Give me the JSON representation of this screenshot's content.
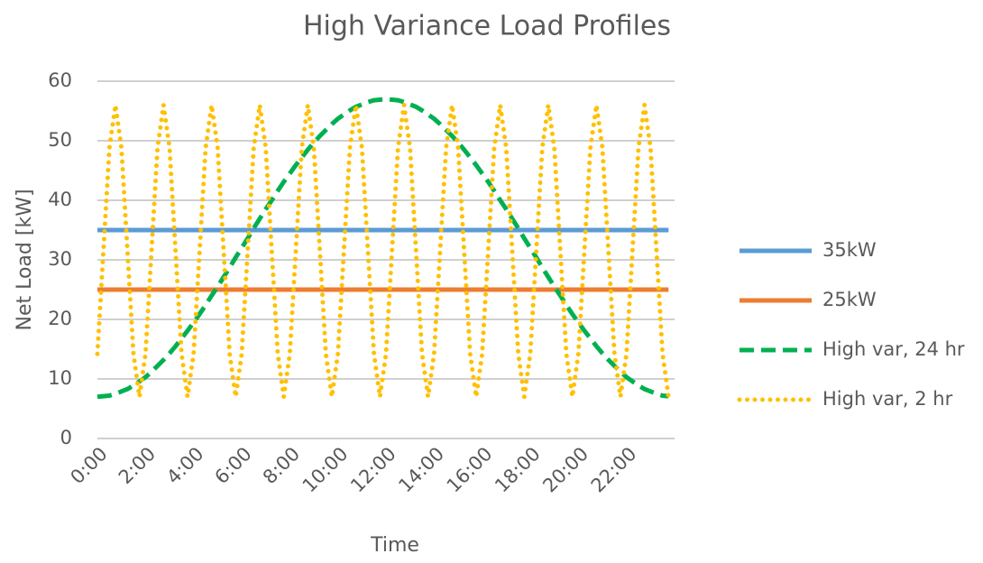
{
  "chart_data": {
    "type": "line",
    "title": "High Variance Load Profiles",
    "x_label": "Time",
    "y_label": "Net Load [kW]",
    "categories": [
      "0:00",
      null,
      null,
      null,
      null,
      null,
      null,
      null,
      "2:00",
      null,
      null,
      null,
      null,
      null,
      null,
      null,
      "4:00",
      null,
      null,
      null,
      null,
      null,
      null,
      null,
      "6:00",
      null,
      null,
      null,
      null,
      null,
      null,
      null,
      "8:00",
      null,
      null,
      null,
      null,
      null,
      null,
      null,
      "10:00",
      null,
      null,
      null,
      null,
      null,
      null,
      null,
      "12:00",
      null,
      null,
      null,
      null,
      null,
      null,
      null,
      "14:00",
      null,
      null,
      null,
      null,
      null,
      null,
      null,
      "16:00",
      null,
      null,
      null,
      null,
      null,
      null,
      null,
      "18:00",
      null,
      null,
      null,
      null,
      null,
      null,
      null,
      "20:00",
      null,
      null,
      null,
      null,
      null,
      null,
      null,
      "22:00",
      null,
      null,
      null,
      null,
      null,
      null,
      null
    ],
    "ylim": [
      0,
      60
    ],
    "yticks": [
      0,
      10,
      20,
      30,
      40,
      50,
      60
    ],
    "grid": true,
    "legend": "right",
    "series": [
      {
        "name": "35kW",
        "color": "#5b9bd5",
        "style": "solid",
        "values": [
          35,
          35,
          35,
          35,
          35,
          35,
          35,
          35,
          35,
          35,
          35,
          35,
          35,
          35,
          35,
          35,
          35,
          35,
          35,
          35,
          35,
          35,
          35,
          35,
          35,
          35,
          35,
          35,
          35,
          35,
          35,
          35,
          35,
          35,
          35,
          35,
          35,
          35,
          35,
          35,
          35,
          35,
          35,
          35,
          35,
          35,
          35,
          35,
          35,
          35,
          35,
          35,
          35,
          35,
          35,
          35,
          35,
          35,
          35,
          35,
          35,
          35,
          35,
          35,
          35,
          35,
          35,
          35,
          35,
          35,
          35,
          35,
          35,
          35,
          35,
          35,
          35,
          35,
          35,
          35,
          35,
          35,
          35,
          35,
          35,
          35,
          35,
          35,
          35,
          35,
          35,
          35,
          35,
          35,
          35,
          35
        ]
      },
      {
        "name": "25kW",
        "color": "#ed7d31",
        "style": "solid",
        "values": [
          25,
          25,
          25,
          25,
          25,
          25,
          25,
          25,
          25,
          25,
          25,
          25,
          25,
          25,
          25,
          25,
          25,
          25,
          25,
          25,
          25,
          25,
          25,
          25,
          25,
          25,
          25,
          25,
          25,
          25,
          25,
          25,
          25,
          25,
          25,
          25,
          25,
          25,
          25,
          25,
          25,
          25,
          25,
          25,
          25,
          25,
          25,
          25,
          25,
          25,
          25,
          25,
          25,
          25,
          25,
          25,
          25,
          25,
          25,
          25,
          25,
          25,
          25,
          25,
          25,
          25,
          25,
          25,
          25,
          25,
          25,
          25,
          25,
          25,
          25,
          25,
          25,
          25,
          25,
          25,
          25,
          25,
          25,
          25,
          25,
          25,
          25,
          25,
          25,
          25,
          25,
          25,
          25,
          25,
          25,
          25
        ]
      },
      {
        "name": "High var, 24 hr",
        "color": "#00b050",
        "style": "dashed",
        "values": [
          7.0,
          7.1,
          7.2,
          7.5,
          7.9,
          8.3,
          8.9,
          9.6,
          10.3,
          11.2,
          12.2,
          13.2,
          14.3,
          15.5,
          16.8,
          18.1,
          19.5,
          20.9,
          22.4,
          24.0,
          25.5,
          27.1,
          28.7,
          30.4,
          32.0,
          33.6,
          35.3,
          36.9,
          38.5,
          40.0,
          41.6,
          43.1,
          44.5,
          45.9,
          47.2,
          48.5,
          49.7,
          50.8,
          51.8,
          52.8,
          53.7,
          54.4,
          55.1,
          55.7,
          56.1,
          56.5,
          56.8,
          56.9,
          57.0,
          56.9,
          56.8,
          56.5,
          56.1,
          55.7,
          55.1,
          54.4,
          53.7,
          52.8,
          51.8,
          50.8,
          49.7,
          48.5,
          47.2,
          45.9,
          44.5,
          43.1,
          41.6,
          40.0,
          38.5,
          36.9,
          35.3,
          33.6,
          32.0,
          30.4,
          28.7,
          27.1,
          25.5,
          24.0,
          22.4,
          20.9,
          19.5,
          18.1,
          16.8,
          15.5,
          14.3,
          13.2,
          12.2,
          11.2,
          10.3,
          9.6,
          8.9,
          8.3,
          7.9,
          7.5,
          7.2,
          7.1
        ]
      },
      {
        "name": "High var, 2 hr",
        "color": "#ffc000",
        "style": "dotted",
        "values": [
          14.2,
          31.5,
          48.8,
          56,
          48.8,
          31.5,
          14.2,
          7,
          14.2,
          31.5,
          48.8,
          56,
          48.8,
          31.5,
          14.2,
          7,
          14.2,
          31.5,
          48.8,
          56,
          48.8,
          31.5,
          14.2,
          7,
          14.2,
          31.5,
          48.8,
          56,
          48.8,
          31.5,
          14.2,
          7,
          14.2,
          31.5,
          48.8,
          56,
          48.8,
          31.5,
          14.2,
          7,
          14.2,
          31.5,
          48.8,
          56,
          48.8,
          31.5,
          14.2,
          7,
          14.2,
          31.5,
          48.8,
          56,
          48.8,
          31.5,
          14.2,
          7,
          14.2,
          31.5,
          48.8,
          56,
          48.8,
          31.5,
          14.2,
          7,
          14.2,
          31.5,
          48.8,
          56,
          48.8,
          31.5,
          14.2,
          7,
          14.2,
          31.5,
          48.8,
          56,
          48.8,
          31.5,
          14.2,
          7,
          14.2,
          31.5,
          48.8,
          56,
          48.8,
          31.5,
          14.2,
          7,
          14.2,
          31.5,
          48.8,
          56,
          48.8,
          31.5,
          14.2,
          7
        ]
      }
    ]
  }
}
